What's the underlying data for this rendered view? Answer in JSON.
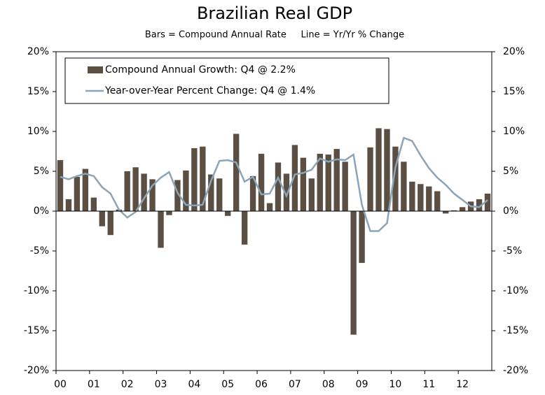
{
  "chart_data": {
    "type": "bar_line",
    "title": "Brazilian Real GDP",
    "subtitle": "Bars = Compound Annual Rate     Line = Yr/Yr % Change",
    "categories": [
      "00",
      null,
      null,
      null,
      "01",
      null,
      null,
      null,
      "02",
      null,
      null,
      null,
      "03",
      null,
      null,
      null,
      "04",
      null,
      null,
      null,
      "05",
      null,
      null,
      null,
      "06",
      null,
      null,
      null,
      "07",
      null,
      null,
      null,
      "08",
      null,
      null,
      null,
      "09",
      null,
      null,
      null,
      "10",
      null,
      null,
      null,
      "11",
      null,
      null,
      null,
      "12",
      null,
      null,
      null
    ],
    "series": [
      {
        "name": "Compound Annual Growth: Q4 @ 2.2%",
        "type": "bar",
        "color": "#5b4f44",
        "values": [
          6.4,
          1.5,
          4.3,
          5.3,
          1.7,
          -1.9,
          -3.0,
          0.2,
          5.0,
          5.5,
          4.7,
          4.0,
          -4.6,
          -0.5,
          3.9,
          5.1,
          7.9,
          8.1,
          4.6,
          4.1,
          -0.6,
          9.7,
          -4.2,
          4.4,
          7.2,
          1.0,
          6.1,
          4.7,
          8.3,
          6.7,
          4.1,
          7.2,
          7.1,
          7.8,
          6.2,
          -15.5,
          -6.5,
          8.0,
          10.4,
          10.3,
          8.1,
          6.2,
          3.7,
          3.4,
          3.1,
          2.5,
          -0.3,
          0.1,
          0.5,
          1.2,
          1.5,
          2.2
        ]
      },
      {
        "name": "Year-over-Year Percent Change: Q4 @ 1.4%",
        "type": "line",
        "color": "#8ba5b8",
        "values": [
          4.3,
          4.0,
          4.4,
          4.7,
          4.4,
          3.0,
          2.2,
          0.2,
          -0.8,
          -0.1,
          1.6,
          3.2,
          4.2,
          4.9,
          2.3,
          0.8,
          0.7,
          0.8,
          3.8,
          6.3,
          6.4,
          6.1,
          3.7,
          4.3,
          2.1,
          2.2,
          4.2,
          1.9,
          4.6,
          4.8,
          5.2,
          6.6,
          6.2,
          6.5,
          6.4,
          7.1,
          0.8,
          -2.5,
          -2.5,
          -1.5,
          5.5,
          9.2,
          8.8,
          7.0,
          5.4,
          4.2,
          3.3,
          2.2,
          1.4,
          0.6,
          0.5,
          1.4
        ]
      }
    ],
    "ylim": [
      -20,
      20
    ],
    "yticks": [
      {
        "value": -20,
        "label": "-20%"
      },
      {
        "value": -15,
        "label": "-15%"
      },
      {
        "value": -10,
        "label": "-10%"
      },
      {
        "value": -5,
        "label": "-5%"
      },
      {
        "value": 0,
        "label": "0%"
      },
      {
        "value": 5,
        "label": "5%"
      },
      {
        "value": 10,
        "label": "10%"
      },
      {
        "value": 15,
        "label": "15%"
      },
      {
        "value": 20,
        "label": "20%"
      }
    ],
    "y2lim": [
      -20,
      20
    ],
    "y2ticks": [
      {
        "value": -20,
        "label": "-20%"
      },
      {
        "value": -15,
        "label": "-15%"
      },
      {
        "value": -10,
        "label": "-10%"
      },
      {
        "value": -5,
        "label": "-5%"
      },
      {
        "value": 0,
        "label": "0%"
      },
      {
        "value": 5,
        "label": "5%"
      },
      {
        "value": 10,
        "label": "10%"
      },
      {
        "value": 15,
        "label": "15%"
      },
      {
        "value": 20,
        "label": "20%"
      }
    ],
    "grid": false,
    "legend": "top-left"
  }
}
